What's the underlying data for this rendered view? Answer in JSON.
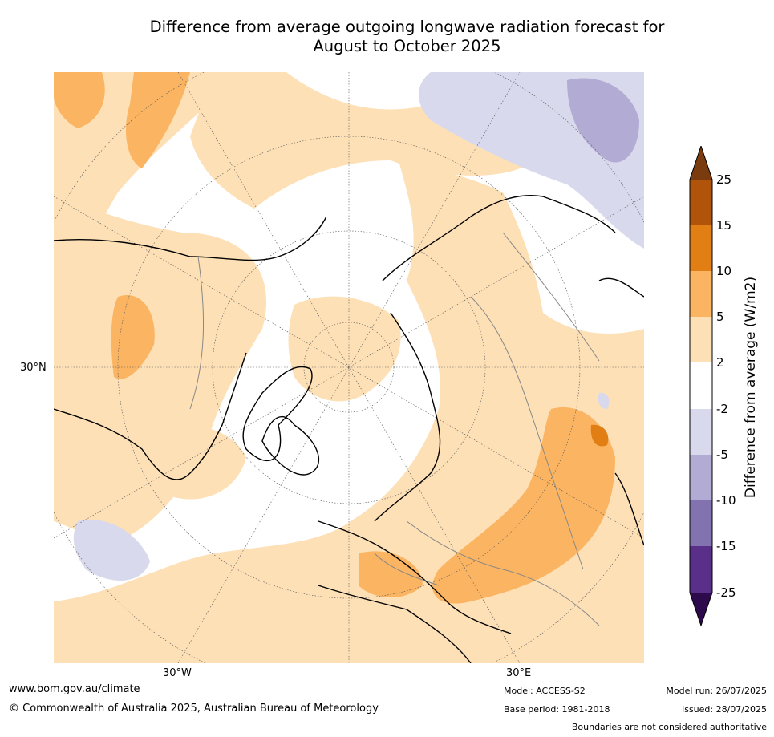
{
  "title": {
    "line1": "Difference from average outgoing longwave radiation forecast for",
    "line2": "August to October 2025"
  },
  "map": {
    "lat_label": "30°N",
    "lon_labels": [
      "30°W",
      "30°E"
    ]
  },
  "colorbar": {
    "label": "Difference from average (W/m2)",
    "ticks": [
      "25",
      "15",
      "10",
      "5",
      "2",
      "-2",
      "-5",
      "-10",
      "-15",
      "-25"
    ],
    "colors": {
      "over": "#7a3b0e",
      "b15_25": "#b1540b",
      "b10_15": "#e17f15",
      "b5_10": "#fbb461",
      "b2_5": "#fde0b6",
      "bm2_2": "#ffffff",
      "bm5_m2": "#d8d9ec",
      "bm10_m5": "#b2abd3",
      "bm15_m10": "#8273b0",
      "bm25_m15": "#5a2f8a",
      "under": "#2d0a4c"
    }
  },
  "footer": {
    "website": "www.bom.gov.au/climate",
    "copyright": "© Commonwealth of Australia 2025, Australian Bureau of Meteorology",
    "model": "Model: ACCESS-S2",
    "base_period": "Base period: 1981-2018",
    "model_run": "Model run: 26/07/2025",
    "issued": "Issued: 28/07/2025",
    "disclaimer": "Boundaries are not considered authoritative"
  }
}
